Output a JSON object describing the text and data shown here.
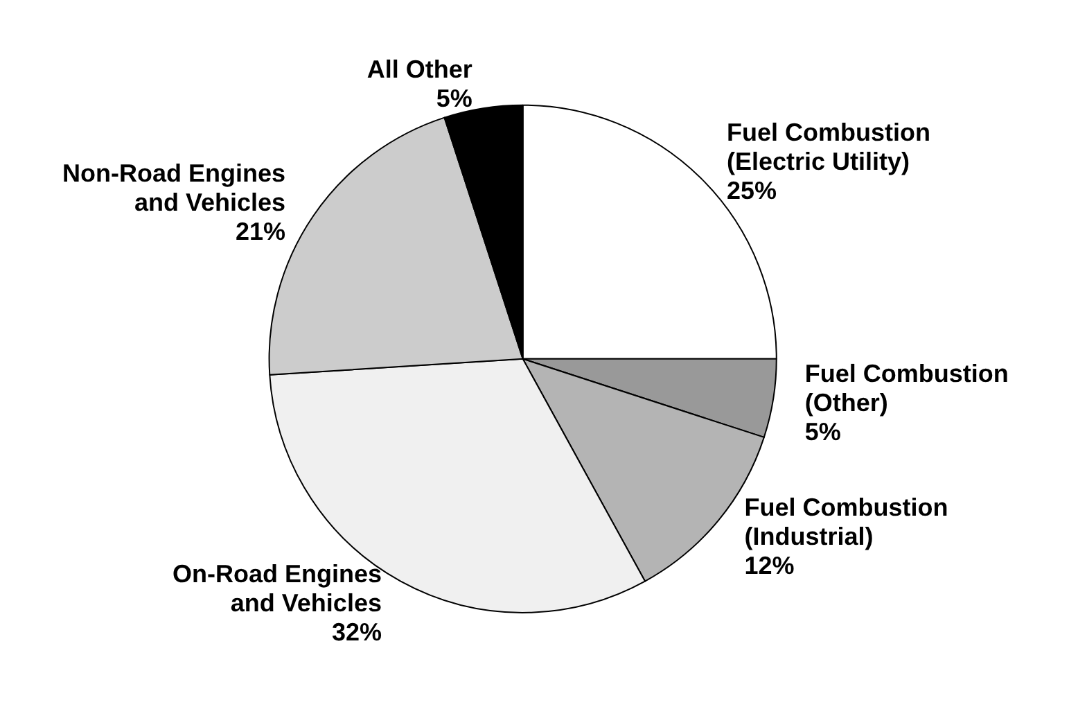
{
  "chart_data": {
    "type": "pie",
    "categories": [
      "Fuel Combustion\n(Electric Utility)",
      "Fuel Combustion\n(Other)",
      "Fuel Combustion\n(Industrial)",
      "On-Road Engines\nand Vehicles",
      "Non-Road Engines\nand Vehicles",
      "All Other"
    ],
    "values": [
      25,
      5,
      12,
      32,
      21,
      5
    ],
    "colors": [
      "#ffffff",
      "#999999",
      "#b4b4b4",
      "#f0f0f0",
      "#cccccc",
      "#000000"
    ],
    "value_labels": [
      "25%",
      "5%",
      "12%",
      "32%",
      "21%",
      "5%"
    ],
    "legend": false
  }
}
